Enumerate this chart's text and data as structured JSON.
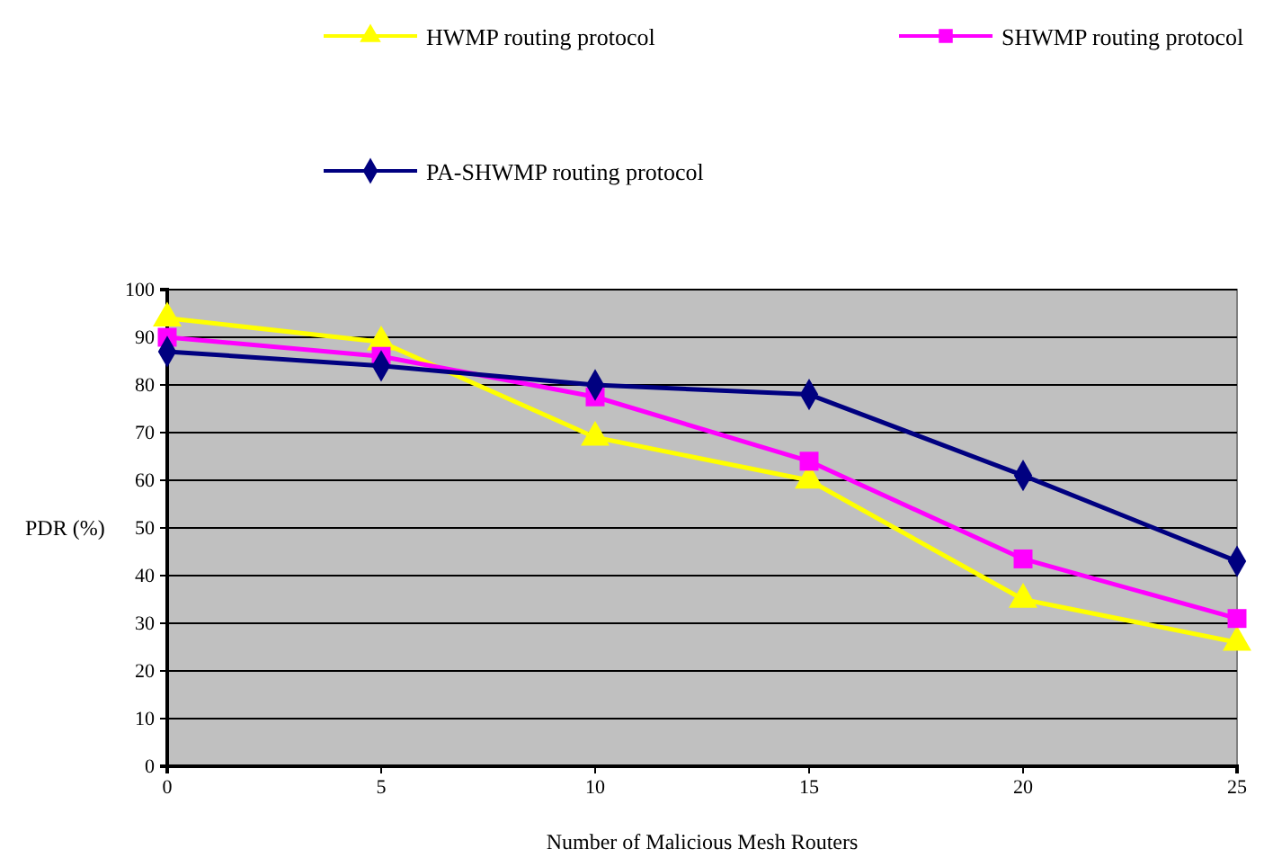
{
  "chart_data": {
    "type": "line",
    "xlabel": "Number of Malicious Mesh Routers",
    "ylabel": "PDR (%)",
    "x": [
      0,
      5,
      10,
      15,
      20,
      25
    ],
    "series": [
      {
        "name": "HWMP routing protocol",
        "color": "#ffff00",
        "marker": "triangle",
        "values": [
          94,
          89,
          69,
          60,
          35,
          26
        ]
      },
      {
        "name": "SHWMP routing protocol",
        "color": "#ff00ff",
        "marker": "square",
        "values": [
          90,
          86,
          77.5,
          64,
          43.5,
          31
        ]
      },
      {
        "name": "PA-SHWMP routing protocol",
        "color": "#000080",
        "marker": "diamond",
        "values": [
          87,
          84,
          80,
          78,
          61,
          43
        ]
      }
    ],
    "xlim": [
      0,
      25
    ],
    "xticks": [
      0,
      5,
      10,
      15,
      20,
      25
    ],
    "ylim": [
      0,
      100
    ],
    "yticks": [
      0,
      10,
      20,
      30,
      40,
      50,
      60,
      70,
      80,
      90,
      100
    ],
    "grid": "y",
    "legend": "top",
    "line_style": "solid"
  }
}
